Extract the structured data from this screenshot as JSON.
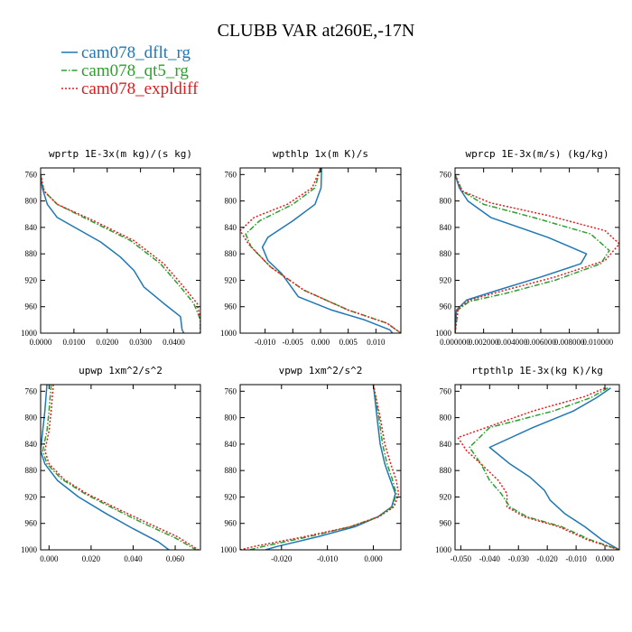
{
  "title": "CLUBB VAR at260E,-17N",
  "legend": [
    {
      "label": "cam078_dflt_rg",
      "color": "#1f77b4",
      "dash": "solid"
    },
    {
      "label": "cam078_qt5_rg",
      "color": "#2ca02c",
      "dash": "dashdot"
    },
    {
      "label": "cam078_expldiff",
      "color": "#e41a1c",
      "dash": "dotted"
    }
  ],
  "chart_data": [
    {
      "type": "line",
      "title": "wprtp  1E-3x(m kg)/(s kg)",
      "xlim": [
        0,
        0.048
      ],
      "ylim": [
        1000,
        750
      ],
      "xticks": [
        0,
        0.01,
        0.02,
        0.03,
        0.04
      ],
      "xticklabels": [
        "0.0000",
        "0.0100",
        "0.0200",
        "0.0300",
        "0.0400"
      ],
      "yticks": [
        760,
        800,
        840,
        880,
        920,
        960,
        1000
      ],
      "yticklabels": [
        "760",
        "800",
        "840",
        "880",
        "920",
        "960",
        "1000"
      ],
      "series": [
        {
          "name": "cam078_dflt_rg",
          "x": [
            0,
            0.0005,
            0.002,
            0.005,
            0.012,
            0.018,
            0.024,
            0.028,
            0.031,
            0.037,
            0.042,
            0.0425,
            0.043
          ],
          "y": [
            760,
            780,
            805,
            825,
            845,
            862,
            885,
            905,
            930,
            955,
            975,
            995,
            1000
          ]
        },
        {
          "name": "cam078_qt5_rg",
          "x": [
            0,
            0.001,
            0.005,
            0.015,
            0.027,
            0.036,
            0.042,
            0.046,
            0.048,
            0.048
          ],
          "y": [
            760,
            785,
            805,
            830,
            860,
            895,
            930,
            955,
            980,
            1000
          ]
        },
        {
          "name": "cam078_expldiff",
          "x": [
            0,
            0.001,
            0.005,
            0.016,
            0.028,
            0.037,
            0.043,
            0.047,
            0.048,
            0.048
          ],
          "y": [
            760,
            785,
            805,
            830,
            860,
            895,
            930,
            955,
            980,
            1000
          ]
        }
      ]
    },
    {
      "type": "line",
      "title": "wpthlp  1x(m K)/s",
      "xlim": [
        -0.0145,
        0.0145
      ],
      "ylim": [
        1000,
        750
      ],
      "xticks": [
        -0.01,
        -0.005,
        0,
        0.005,
        0.01
      ],
      "xticklabels": [
        "-0.010",
        "-0.005",
        "0.000",
        "0.005",
        "0.010"
      ],
      "yticks": [
        760,
        800,
        840,
        880,
        920,
        960,
        1000
      ],
      "yticklabels": [
        "760",
        "800",
        "840",
        "880",
        "920",
        "960",
        "1000"
      ],
      "series": [
        {
          "name": "cam078_dflt_rg",
          "x": [
            0.0002,
            0.0001,
            -0.001,
            -0.005,
            -0.0095,
            -0.0105,
            -0.0095,
            -0.007,
            -0.004,
            0.002,
            0.008,
            0.0125,
            0.013
          ],
          "y": [
            750,
            780,
            805,
            830,
            855,
            870,
            890,
            910,
            945,
            965,
            980,
            995,
            1000
          ]
        },
        {
          "name": "cam078_qt5_rg",
          "x": [
            0,
            -0.001,
            -0.005,
            -0.011,
            -0.0135,
            -0.0125,
            -0.009,
            -0.003,
            0.005,
            0.012,
            0.0145
          ],
          "y": [
            750,
            780,
            805,
            830,
            850,
            870,
            900,
            935,
            965,
            985,
            1000
          ]
        },
        {
          "name": "cam078_expldiff",
          "x": [
            0,
            -0.0015,
            -0.006,
            -0.012,
            -0.0145,
            -0.013,
            -0.009,
            -0.003,
            0.005,
            0.012,
            0.0145
          ],
          "y": [
            750,
            780,
            805,
            825,
            845,
            865,
            900,
            935,
            965,
            985,
            1000
          ]
        }
      ]
    },
    {
      "type": "line",
      "title": "wprcp  1E-3x(m/s) (kg/kg)",
      "xlim": [
        0,
        0.0115
      ],
      "ylim": [
        1000,
        750
      ],
      "xticks": [
        0,
        0.002,
        0.004,
        0.006,
        0.008,
        0.01
      ],
      "xticklabels": [
        "0.000000",
        "0.002000",
        "0.004000",
        "0.006000",
        "0.008000",
        "0.010000"
      ],
      "yticks": [
        760,
        800,
        840,
        880,
        920,
        960,
        1000
      ],
      "yticklabels": [
        "760",
        "800",
        "840",
        "880",
        "920",
        "960",
        "1000"
      ],
      "series": [
        {
          "name": "cam078_dflt_rg",
          "x": [
            0,
            0.0003,
            0.0009,
            0.0025,
            0.0065,
            0.0092,
            0.0088,
            0.006,
            0.003,
            0.0008,
            0.0001,
            0
          ],
          "y": [
            760,
            780,
            800,
            825,
            855,
            880,
            895,
            915,
            935,
            950,
            965,
            1000
          ]
        },
        {
          "name": "cam078_qt5_rg",
          "x": [
            0,
            0.0005,
            0.002,
            0.0055,
            0.0095,
            0.0108,
            0.0102,
            0.007,
            0.0035,
            0.001,
            0.0002,
            0
          ],
          "y": [
            760,
            785,
            805,
            825,
            850,
            875,
            895,
            920,
            940,
            952,
            965,
            1000
          ]
        },
        {
          "name": "cam078_expldiff",
          "x": [
            0,
            0.0005,
            0.0025,
            0.0065,
            0.0105,
            0.0115,
            0.0105,
            0.007,
            0.0035,
            0.001,
            0.0002,
            0
          ],
          "y": [
            760,
            785,
            803,
            822,
            845,
            865,
            890,
            915,
            935,
            950,
            963,
            1000
          ]
        }
      ]
    },
    {
      "type": "line",
      "title": "upwp  1xm^2/s^2",
      "xlim": [
        -0.004,
        0.072
      ],
      "ylim": [
        1000,
        750
      ],
      "xticks": [
        0,
        0.02,
        0.04,
        0.06
      ],
      "xticklabels": [
        "0.000",
        "0.020",
        "0.040",
        "0.060"
      ],
      "yticks": [
        760,
        800,
        840,
        880,
        920,
        960,
        1000
      ],
      "yticklabels": [
        "760",
        "800",
        "840",
        "880",
        "920",
        "960",
        "1000"
      ],
      "series": [
        {
          "name": "cam078_dflt_rg",
          "x": [
            -0.001,
            -0.002,
            -0.003,
            -0.004,
            -0.002,
            0.004,
            0.014,
            0.027,
            0.04,
            0.052,
            0.057
          ],
          "y": [
            750,
            790,
            820,
            850,
            870,
            895,
            920,
            945,
            968,
            988,
            1000
          ]
        },
        {
          "name": "cam078_qt5_rg",
          "x": [
            0.001,
            0,
            -0.001,
            -0.003,
            -0.001,
            0.006,
            0.017,
            0.031,
            0.045,
            0.06,
            0.07
          ],
          "y": [
            750,
            790,
            820,
            850,
            870,
            893,
            915,
            938,
            960,
            982,
            1000
          ]
        },
        {
          "name": "cam078_expldiff",
          "x": [
            0.002,
            0.001,
            0,
            -0.002,
            0,
            0.007,
            0.018,
            0.032,
            0.046,
            0.061,
            0.071
          ],
          "y": [
            750,
            790,
            820,
            850,
            870,
            893,
            915,
            937,
            958,
            980,
            1000
          ]
        }
      ]
    },
    {
      "type": "line",
      "title": "vpwp  1xm^2/s^2",
      "xlim": [
        -0.029,
        0.006
      ],
      "ylim": [
        1000,
        750
      ],
      "xticks": [
        -0.02,
        -0.01,
        0
      ],
      "xticklabels": [
        "-0.020",
        "-0.010",
        "0.000"
      ],
      "yticks": [
        760,
        800,
        840,
        880,
        920,
        960,
        1000
      ],
      "yticklabels": [
        "760",
        "800",
        "840",
        "880",
        "920",
        "960",
        "1000"
      ],
      "series": [
        {
          "name": "cam078_dflt_rg",
          "x": [
            0,
            0.0008,
            0.0015,
            0.0025,
            0.0035,
            0.0048,
            0.004,
            0.001,
            -0.004,
            -0.012,
            -0.021,
            -0.0235
          ],
          "y": [
            750,
            800,
            840,
            870,
            890,
            915,
            935,
            950,
            965,
            980,
            995,
            1000
          ]
        },
        {
          "name": "cam078_qt5_rg",
          "x": [
            0,
            0.0012,
            0.002,
            0.003,
            0.004,
            0.005,
            0.0042,
            0.001,
            -0.005,
            -0.014,
            -0.024,
            -0.027
          ],
          "y": [
            750,
            800,
            840,
            870,
            890,
            915,
            935,
            950,
            965,
            980,
            995,
            1000
          ]
        },
        {
          "name": "cam078_expldiff",
          "x": [
            0,
            0.0015,
            0.0025,
            0.0038,
            0.005,
            0.0055,
            0.0045,
            0.0012,
            -0.005,
            -0.015,
            -0.026,
            -0.029
          ],
          "y": [
            750,
            800,
            840,
            870,
            895,
            915,
            935,
            950,
            965,
            980,
            995,
            1000
          ]
        }
      ]
    },
    {
      "type": "line",
      "title": "rtpthlp  1E-3x(kg K)/kg",
      "xlim": [
        -0.052,
        0.005
      ],
      "ylim": [
        1000,
        750
      ],
      "xticks": [
        -0.05,
        -0.04,
        -0.03,
        -0.02,
        -0.01,
        0
      ],
      "xticklabels": [
        "-0.050",
        "-0.040",
        "-0.030",
        "-0.020",
        "-0.010",
        "0.000"
      ],
      "yticks": [
        760,
        800,
        840,
        880,
        920,
        960,
        1000
      ],
      "yticklabels": [
        "760",
        "800",
        "840",
        "880",
        "920",
        "960",
        "1000"
      ],
      "series": [
        {
          "name": "cam078_dflt_rg",
          "x": [
            0.002,
            -0.003,
            -0.011,
            -0.025,
            -0.04,
            -0.033,
            -0.026,
            -0.021,
            -0.019,
            -0.014,
            -0.007,
            -0.001,
            0.005
          ],
          "y": [
            755,
            770,
            790,
            815,
            845,
            870,
            890,
            910,
            925,
            945,
            965,
            985,
            1000
          ]
        },
        {
          "name": "cam078_qt5_rg",
          "x": [
            0.001,
            -0.005,
            -0.018,
            -0.04,
            -0.047,
            -0.043,
            -0.04,
            -0.036,
            -0.033,
            -0.027,
            -0.015,
            -0.005,
            0.005
          ],
          "y": [
            755,
            770,
            790,
            815,
            845,
            870,
            895,
            915,
            935,
            950,
            965,
            985,
            1000
          ]
        },
        {
          "name": "cam078_expldiff",
          "x": [
            0,
            -0.007,
            -0.025,
            -0.051,
            -0.048,
            -0.043,
            -0.037,
            -0.034,
            -0.034,
            -0.028,
            -0.016,
            -0.006,
            0.005
          ],
          "y": [
            755,
            768,
            790,
            830,
            850,
            870,
            895,
            915,
            935,
            950,
            965,
            985,
            1000
          ]
        }
      ]
    }
  ]
}
